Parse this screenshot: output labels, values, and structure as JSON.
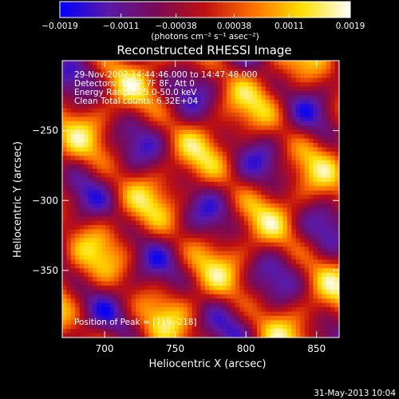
{
  "chart_data": {
    "type": "heatmap",
    "title": "Reconstructed RHESSI Image",
    "xlabel": "Heliocentric X (arcsec)",
    "ylabel": "Heliocentric Y (arcsec)",
    "xlim": [
      670,
      866
    ],
    "ylim": [
      -398,
      -200
    ],
    "x_ticks": [
      700,
      750,
      800,
      850
    ],
    "x_tick_labels": [
      "700",
      "750",
      "800",
      "850"
    ],
    "y_ticks": [
      -250,
      -300,
      -350
    ],
    "y_tick_labels": [
      "−250",
      "−300",
      "−350"
    ],
    "colorbar": {
      "range": [
        -0.0019,
        0.0019
      ],
      "ticks": [
        -0.0019,
        -0.0011,
        -0.00038,
        0.00038,
        0.0011,
        0.0019
      ],
      "tick_labels": [
        "−0.0019",
        "−0.0011",
        "−0.00038",
        "0.00038",
        "0.0011",
        "0.0019"
      ],
      "units_label": "(photons cm⁻² s⁻¹ asec⁻²)",
      "colormap": [
        "#0000ff",
        "#5a1aa8",
        "#7a0a56",
        "#c01010",
        "#ff7000",
        "#ffe000",
        "#ffffff"
      ]
    },
    "annotations": [
      "29-Nov-2002 14:44:46.000 to 14:47:48.000",
      "Detectors: 5F 6F 7F 8F, Att 0",
      "Energy Range: 25.0-50.0 keV",
      "Clean     Total counts: 6.32E+04"
    ],
    "peak_label": "Position of Peak = [719,-218]",
    "peak": {
      "x": 719,
      "y": -218
    },
    "grid": false,
    "legend": "none"
  },
  "footer": {
    "date": "31-May-2013 10:04"
  }
}
